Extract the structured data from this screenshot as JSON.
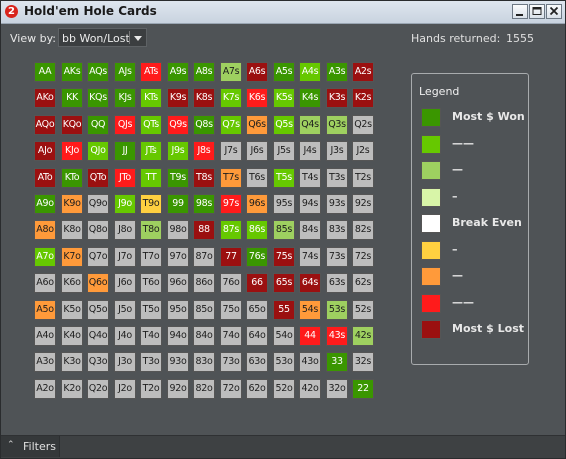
{
  "window": {
    "title": "Hold'em Hole Cards",
    "icon_label": "2"
  },
  "toolbar": {
    "view_by_label": "View by:",
    "view_by_value": "bb Won/Lost",
    "hands_returned_label": "Hands returned:",
    "hands_returned_value": "1555"
  },
  "palette": {
    "dg": "#3a9600",
    "lg": "#66c800",
    "mg": "#9ed060",
    "pg": "#d8f5a8",
    "wh": "#ffffff",
    "yl": "#ffd040",
    "or": "#ff9a3a",
    "rd": "#ff1b1b",
    "dr": "#9b1010",
    "gy": "#bdbdbd"
  },
  "grid": {
    "rows": [
      [
        [
          "AA",
          "dg"
        ],
        [
          "AKs",
          "dg"
        ],
        [
          "AQs",
          "dg"
        ],
        [
          "AJs",
          "dg"
        ],
        [
          "ATs",
          "rd"
        ],
        [
          "A9s",
          "dg"
        ],
        [
          "A8s",
          "dg"
        ],
        [
          "A7s",
          "mg"
        ],
        [
          "A6s",
          "dr"
        ],
        [
          "A5s",
          "dg"
        ],
        [
          "A4s",
          "lg"
        ],
        [
          "A3s",
          "dg"
        ],
        [
          "A2s",
          "dr"
        ]
      ],
      [
        [
          "AKo",
          "dr"
        ],
        [
          "KK",
          "dg"
        ],
        [
          "KQs",
          "dg"
        ],
        [
          "KJs",
          "dg"
        ],
        [
          "KTs",
          "lg"
        ],
        [
          "K9s",
          "dr"
        ],
        [
          "K8s",
          "dr"
        ],
        [
          "K7s",
          "lg"
        ],
        [
          "K6s",
          "rd"
        ],
        [
          "K5s",
          "lg"
        ],
        [
          "K4s",
          "dg"
        ],
        [
          "K3s",
          "dr"
        ],
        [
          "K2s",
          "dr"
        ]
      ],
      [
        [
          "AQo",
          "dr"
        ],
        [
          "KQo",
          "dr"
        ],
        [
          "QQ",
          "dg"
        ],
        [
          "QJs",
          "rd"
        ],
        [
          "QTs",
          "lg"
        ],
        [
          "Q9s",
          "rd"
        ],
        [
          "Q8s",
          "dg"
        ],
        [
          "Q7s",
          "lg"
        ],
        [
          "Q6s",
          "or"
        ],
        [
          "Q5s",
          "lg"
        ],
        [
          "Q4s",
          "mg"
        ],
        [
          "Q3s",
          "mg"
        ],
        [
          "Q2s",
          "gy"
        ]
      ],
      [
        [
          "AJo",
          "dr"
        ],
        [
          "KJo",
          "rd"
        ],
        [
          "QJo",
          "lg"
        ],
        [
          "JJ",
          "dg"
        ],
        [
          "JTs",
          "lg"
        ],
        [
          "J9s",
          "lg"
        ],
        [
          "J8s",
          "rd"
        ],
        [
          "J7s",
          "gy"
        ],
        [
          "J6s",
          "gy"
        ],
        [
          "J5s",
          "gy"
        ],
        [
          "J4s",
          "gy"
        ],
        [
          "J3s",
          "gy"
        ],
        [
          "J2s",
          "gy"
        ]
      ],
      [
        [
          "ATo",
          "dr"
        ],
        [
          "KTo",
          "dg"
        ],
        [
          "QTo",
          "dr"
        ],
        [
          "JTo",
          "rd"
        ],
        [
          "TT",
          "lg"
        ],
        [
          "T9s",
          "dg"
        ],
        [
          "T8s",
          "dr"
        ],
        [
          "T7s",
          "or"
        ],
        [
          "T6s",
          "gy"
        ],
        [
          "T5s",
          "lg"
        ],
        [
          "T4s",
          "gy"
        ],
        [
          "T3s",
          "gy"
        ],
        [
          "T2s",
          "gy"
        ]
      ],
      [
        [
          "A9o",
          "dg"
        ],
        [
          "K9o",
          "or"
        ],
        [
          "Q9o",
          "gy"
        ],
        [
          "J9o",
          "lg"
        ],
        [
          "T9o",
          "yl"
        ],
        [
          "99",
          "dg"
        ],
        [
          "98s",
          "dg"
        ],
        [
          "97s",
          "rd"
        ],
        [
          "96s",
          "or"
        ],
        [
          "95s",
          "gy"
        ],
        [
          "94s",
          "gy"
        ],
        [
          "93s",
          "gy"
        ],
        [
          "92s",
          "gy"
        ]
      ],
      [
        [
          "A8o",
          "or"
        ],
        [
          "K8o",
          "gy"
        ],
        [
          "Q8o",
          "gy"
        ],
        [
          "J8o",
          "gy"
        ],
        [
          "T8o",
          "mg"
        ],
        [
          "98o",
          "gy"
        ],
        [
          "88",
          "dr"
        ],
        [
          "87s",
          "lg"
        ],
        [
          "86s",
          "lg"
        ],
        [
          "85s",
          "mg"
        ],
        [
          "84s",
          "gy"
        ],
        [
          "83s",
          "gy"
        ],
        [
          "82s",
          "gy"
        ]
      ],
      [
        [
          "A7o",
          "lg"
        ],
        [
          "K7o",
          "or"
        ],
        [
          "Q7o",
          "gy"
        ],
        [
          "J7o",
          "gy"
        ],
        [
          "T7o",
          "gy"
        ],
        [
          "97o",
          "gy"
        ],
        [
          "87o",
          "gy"
        ],
        [
          "77",
          "dr"
        ],
        [
          "76s",
          "dg"
        ],
        [
          "75s",
          "dr"
        ],
        [
          "74s",
          "gy"
        ],
        [
          "73s",
          "gy"
        ],
        [
          "72s",
          "gy"
        ]
      ],
      [
        [
          "A6o",
          "gy"
        ],
        [
          "K6o",
          "gy"
        ],
        [
          "Q6o",
          "or"
        ],
        [
          "J6o",
          "gy"
        ],
        [
          "T6o",
          "gy"
        ],
        [
          "96o",
          "gy"
        ],
        [
          "86o",
          "gy"
        ],
        [
          "76o",
          "gy"
        ],
        [
          "66",
          "dr"
        ],
        [
          "65s",
          "dr"
        ],
        [
          "64s",
          "dr"
        ],
        [
          "63s",
          "gy"
        ],
        [
          "62s",
          "gy"
        ]
      ],
      [
        [
          "A5o",
          "or"
        ],
        [
          "K5o",
          "gy"
        ],
        [
          "Q5o",
          "gy"
        ],
        [
          "J5o",
          "gy"
        ],
        [
          "T5o",
          "gy"
        ],
        [
          "95o",
          "gy"
        ],
        [
          "85o",
          "gy"
        ],
        [
          "75o",
          "gy"
        ],
        [
          "65o",
          "gy"
        ],
        [
          "55",
          "dr"
        ],
        [
          "54s",
          "or"
        ],
        [
          "53s",
          "mg"
        ],
        [
          "52s",
          "gy"
        ]
      ],
      [
        [
          "A4o",
          "gy"
        ],
        [
          "K4o",
          "gy"
        ],
        [
          "Q4o",
          "gy"
        ],
        [
          "J4o",
          "gy"
        ],
        [
          "T4o",
          "gy"
        ],
        [
          "94o",
          "gy"
        ],
        [
          "84o",
          "gy"
        ],
        [
          "74o",
          "gy"
        ],
        [
          "64o",
          "gy"
        ],
        [
          "54o",
          "gy"
        ],
        [
          "44",
          "rd"
        ],
        [
          "43s",
          "rd"
        ],
        [
          "42s",
          "mg"
        ]
      ],
      [
        [
          "A3o",
          "gy"
        ],
        [
          "K3o",
          "gy"
        ],
        [
          "Q3o",
          "gy"
        ],
        [
          "J3o",
          "gy"
        ],
        [
          "T3o",
          "gy"
        ],
        [
          "93o",
          "gy"
        ],
        [
          "83o",
          "gy"
        ],
        [
          "73o",
          "gy"
        ],
        [
          "63o",
          "gy"
        ],
        [
          "53o",
          "gy"
        ],
        [
          "43o",
          "gy"
        ],
        [
          "33",
          "dg"
        ],
        [
          "32s",
          "gy"
        ]
      ],
      [
        [
          "A2o",
          "gy"
        ],
        [
          "K2o",
          "gy"
        ],
        [
          "Q2o",
          "gy"
        ],
        [
          "J2o",
          "gy"
        ],
        [
          "T2o",
          "gy"
        ],
        [
          "92o",
          "gy"
        ],
        [
          "82o",
          "gy"
        ],
        [
          "72o",
          "gy"
        ],
        [
          "62o",
          "gy"
        ],
        [
          "52o",
          "gy"
        ],
        [
          "42o",
          "gy"
        ],
        [
          "32o",
          "gy"
        ],
        [
          "22",
          "dg"
        ]
      ]
    ]
  },
  "legend": {
    "title": "Legend",
    "items": [
      {
        "label": "Most $ Won",
        "color": "#3a9600"
      },
      {
        "label": "——",
        "color": "#66c800"
      },
      {
        "label": "—",
        "color": "#9ed060"
      },
      {
        "label": "–",
        "color": "#d8f5a8"
      },
      {
        "label": "Break Even",
        "color": "#ffffff"
      },
      {
        "label": "–",
        "color": "#ffd040"
      },
      {
        "label": "—",
        "color": "#ff9a3a"
      },
      {
        "label": "——",
        "color": "#ff1b1b"
      },
      {
        "label": "Most $ Lost",
        "color": "#9b1010"
      }
    ]
  },
  "statusbar": {
    "filters_label": "Filters"
  }
}
